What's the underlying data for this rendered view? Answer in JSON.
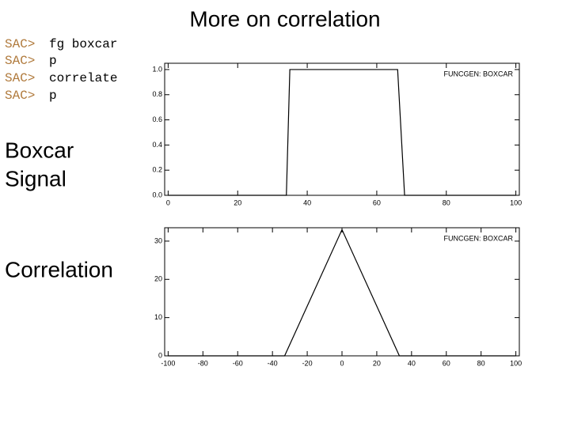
{
  "title": "More on correlation",
  "commands": [
    {
      "prompt": "SAC>",
      "text": "fg boxcar"
    },
    {
      "prompt": "SAC>",
      "text": "p"
    },
    {
      "prompt": "SAC>",
      "text": "correlate"
    },
    {
      "prompt": "SAC>",
      "text": "p"
    }
  ],
  "side_labels": {
    "signal": [
      "Boxcar",
      "Signal"
    ],
    "correlation": "Correlation"
  },
  "chart_data": [
    {
      "type": "line",
      "annotation": "FUNCGEN: BOXCAR",
      "color": "#000000",
      "x": [
        0,
        34,
        35,
        66,
        68,
        100
      ],
      "values": [
        0,
        0,
        1,
        1,
        0,
        0
      ],
      "xlim": [
        -1,
        101
      ],
      "xticks": [
        0,
        20,
        40,
        60,
        80,
        100
      ],
      "ylim": [
        0,
        1.05
      ],
      "yticks": [
        {
          "value": 0,
          "label": "0.0"
        },
        0.2,
        0.4,
        0.6,
        0.8,
        {
          "value": 1,
          "label": "1.0"
        }
      ]
    },
    {
      "type": "line",
      "annotation": "FUNCGEN: BOXCAR",
      "color": "#000000",
      "x": [
        -100,
        -33,
        0,
        33,
        100
      ],
      "values": [
        0,
        0,
        33,
        0,
        0
      ],
      "xlim": [
        -102,
        102
      ],
      "xticks": [
        -100,
        -80,
        -60,
        -40,
        -20,
        0,
        20,
        40,
        60,
        80,
        100
      ],
      "ylim": [
        0,
        33.5
      ],
      "yticks": [
        0,
        10,
        20,
        30
      ]
    }
  ]
}
